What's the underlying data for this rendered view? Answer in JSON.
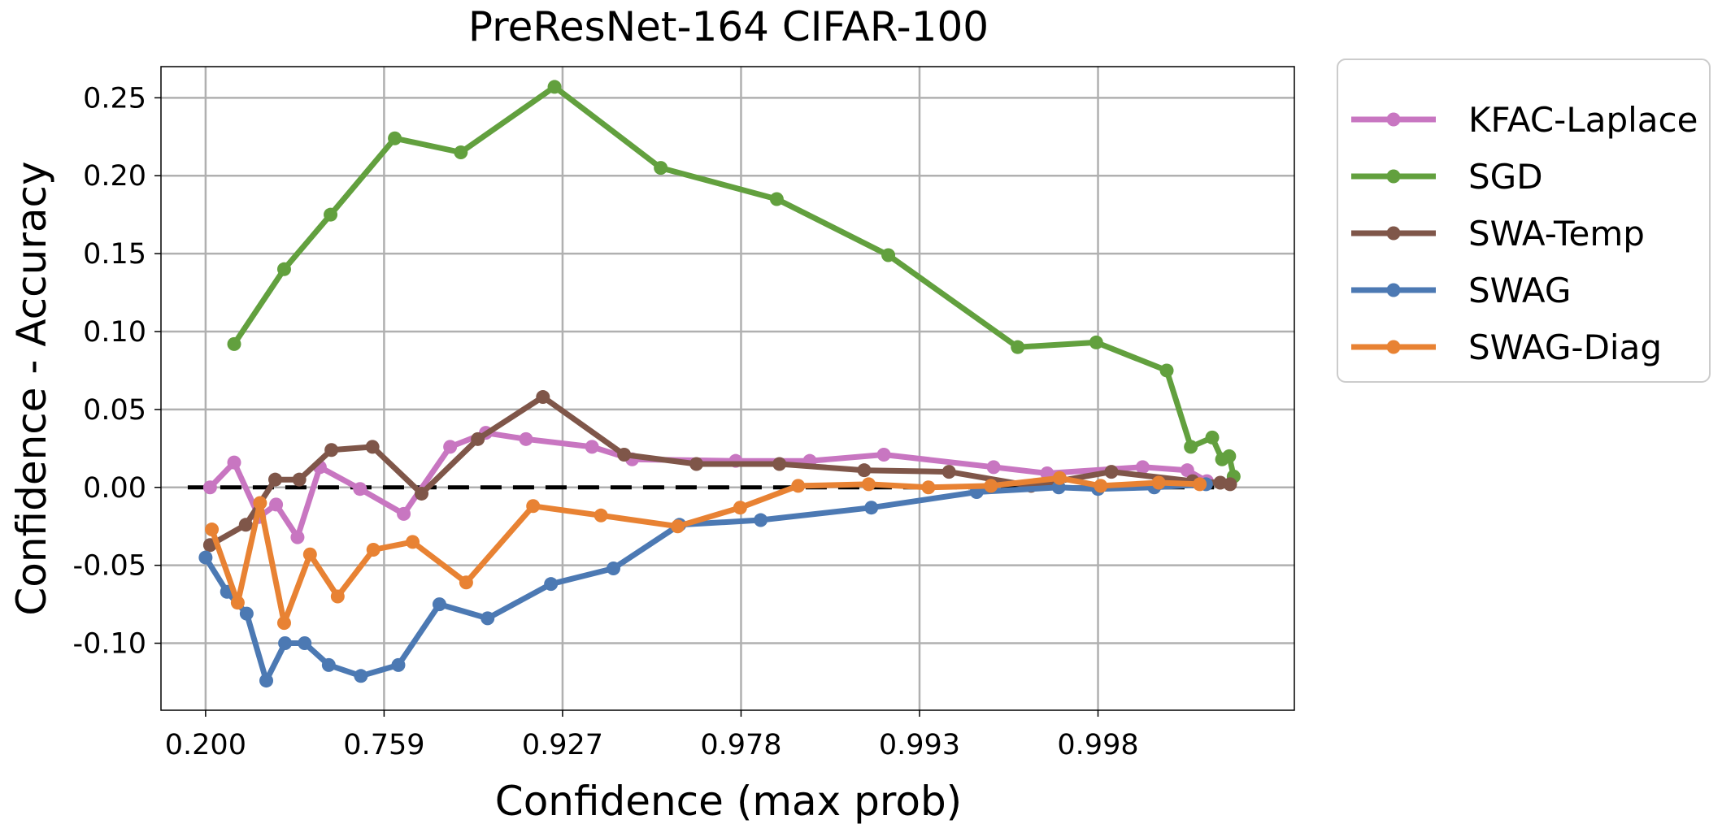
{
  "chart_data": {
    "type": "line",
    "title": "PreResNet-164 CIFAR-100",
    "xlabel": "Confidence (max prob)",
    "ylabel": "Confidence - Accuracy",
    "xscale": "nonlinear (quantile-spaced bins)",
    "x_tick_labels": [
      "0.200",
      "0.759",
      "0.927",
      "0.978",
      "0.993",
      "0.998"
    ],
    "x_tick_positions": [
      0,
      0.2,
      0.4,
      0.6,
      0.8,
      1.0
    ],
    "xlim": [
      -0.05,
      1.22
    ],
    "ylim": [
      -0.143,
      0.27
    ],
    "y_ticks": [
      -0.1,
      -0.05,
      0.0,
      0.05,
      0.1,
      0.15,
      0.2,
      0.25
    ],
    "y_tick_labels": [
      "-0.10",
      "-0.05",
      "0.00",
      "0.05",
      "0.10",
      "0.15",
      "0.20",
      "0.25"
    ],
    "grid": true,
    "legend_position": "outside-right-top",
    "reference_line": {
      "y": 0.0,
      "style": "dashed",
      "color": "#000000",
      "x_range": [
        -0.02,
        1.13
      ]
    },
    "series": [
      {
        "name": "KFAC-Laplace",
        "color": "#c876c1",
        "x": [
          0.005,
          0.032,
          0.06,
          0.079,
          0.103,
          0.128,
          0.173,
          0.222,
          0.274,
          0.314,
          0.359,
          0.433,
          0.478,
          0.594,
          0.677,
          0.76,
          0.883,
          0.943,
          1.05,
          1.1,
          1.122
        ],
        "y": [
          0.0,
          0.016,
          -0.019,
          -0.011,
          -0.032,
          0.013,
          -0.001,
          -0.017,
          0.026,
          0.035,
          0.031,
          0.026,
          0.018,
          0.017,
          0.017,
          0.021,
          0.013,
          0.009,
          0.013,
          0.011,
          0.004
        ]
      },
      {
        "name": "SGD",
        "color": "#62a03e",
        "x": [
          0.032,
          0.088,
          0.14,
          0.212,
          0.286,
          0.391,
          0.51,
          0.64,
          0.765,
          0.91,
          0.998,
          1.077,
          1.104,
          1.128,
          1.139,
          1.147,
          1.152
        ],
        "y": [
          0.092,
          0.14,
          0.175,
          0.224,
          0.215,
          0.257,
          0.205,
          0.185,
          0.149,
          0.09,
          0.093,
          0.075,
          0.026,
          0.032,
          0.018,
          0.02,
          0.007
        ]
      },
      {
        "name": "SWA-Temp",
        "color": "#7f5649",
        "x": [
          0.005,
          0.045,
          0.078,
          0.105,
          0.141,
          0.187,
          0.242,
          0.305,
          0.378,
          0.469,
          0.55,
          0.643,
          0.738,
          0.833,
          0.925,
          1.015,
          1.106,
          1.137,
          1.148
        ],
        "y": [
          -0.037,
          -0.024,
          0.005,
          0.005,
          0.024,
          0.026,
          -0.004,
          0.031,
          0.058,
          0.021,
          0.015,
          0.015,
          0.011,
          0.01,
          0.001,
          0.01,
          0.004,
          0.003,
          0.002
        ]
      },
      {
        "name": "SWAG",
        "color": "#4c79b3",
        "x": [
          0.0,
          0.024,
          0.046,
          0.068,
          0.089,
          0.111,
          0.138,
          0.174,
          0.216,
          0.262,
          0.316,
          0.387,
          0.457,
          0.531,
          0.622,
          0.746,
          0.864,
          0.956,
          1.0,
          1.063,
          1.121
        ],
        "y": [
          -0.045,
          -0.067,
          -0.081,
          -0.124,
          -0.1,
          -0.1,
          -0.114,
          -0.121,
          -0.114,
          -0.075,
          -0.084,
          -0.062,
          -0.052,
          -0.024,
          -0.021,
          -0.013,
          -0.003,
          0.0,
          -0.001,
          0.0,
          0.002
        ]
      },
      {
        "name": "SWAG-Diag",
        "color": "#e88233",
        "x": [
          0.007,
          0.036,
          0.061,
          0.088,
          0.117,
          0.148,
          0.188,
          0.232,
          0.292,
          0.367,
          0.443,
          0.529,
          0.599,
          0.664,
          0.743,
          0.81,
          0.88,
          0.957,
          1.003,
          1.068,
          1.114
        ],
        "y": [
          -0.027,
          -0.074,
          -0.01,
          -0.087,
          -0.043,
          -0.07,
          -0.04,
          -0.035,
          -0.061,
          -0.012,
          -0.018,
          -0.025,
          -0.013,
          0.001,
          0.002,
          0.0,
          0.001,
          0.006,
          0.001,
          0.003,
          0.002
        ]
      }
    ]
  }
}
